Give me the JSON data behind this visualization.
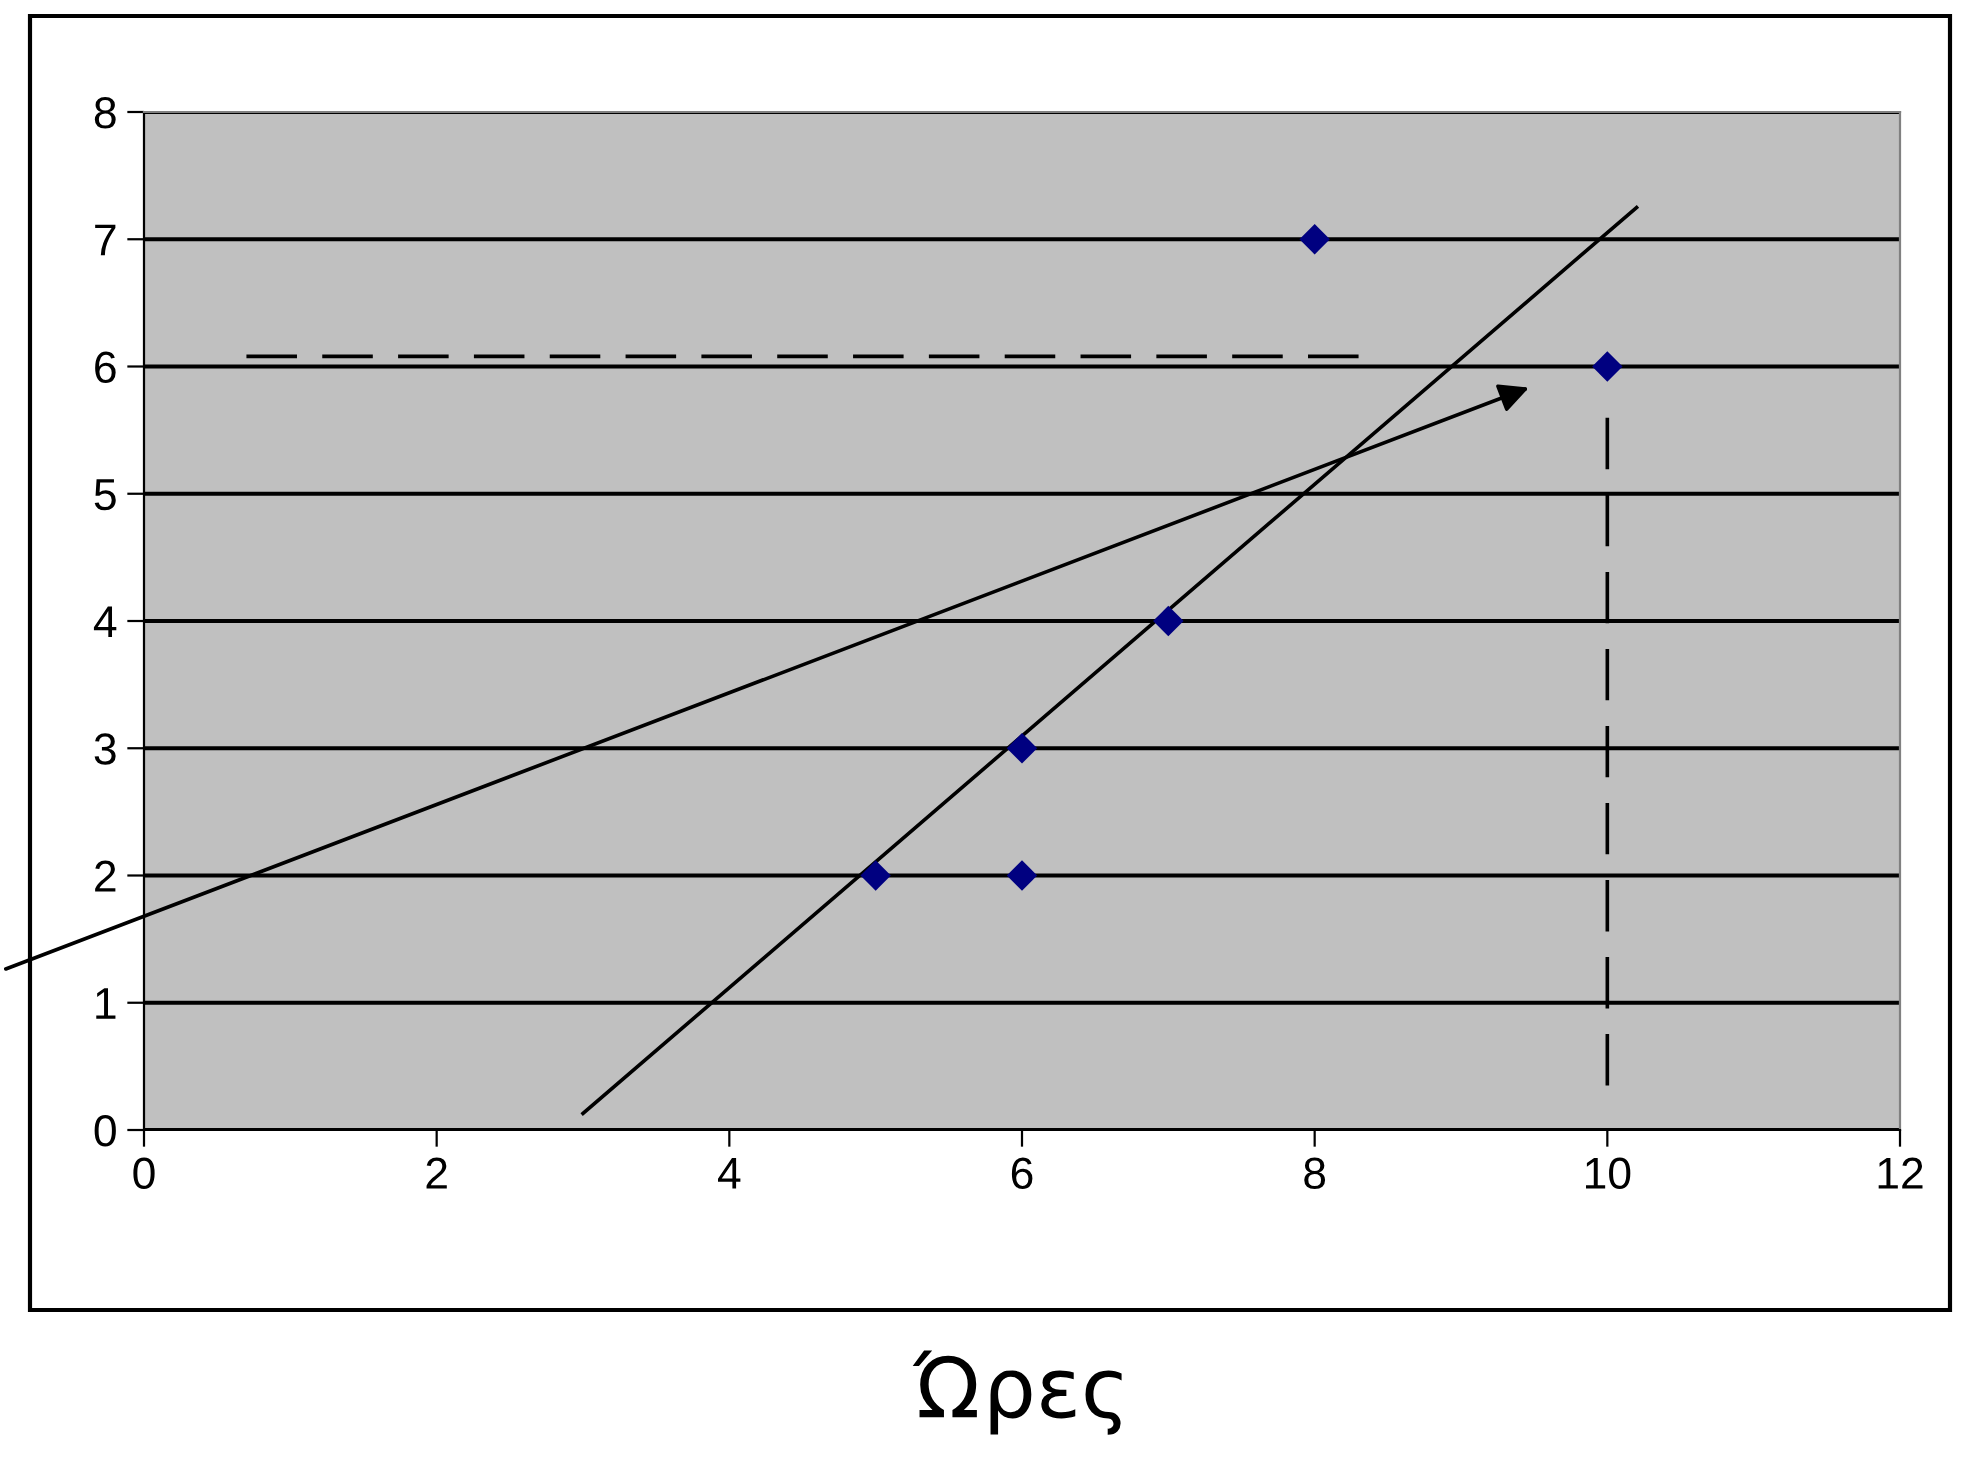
{
  "chart_data": {
    "type": "scatter",
    "xlabel": "Ώρες",
    "series": [
      {
        "color": "#000080",
        "marker": "diamond",
        "x": [
          5,
          6,
          6,
          7,
          8,
          10
        ],
        "values": [
          2,
          2,
          3,
          4,
          7,
          6
        ]
      },
      {
        "type": "line",
        "color": "#000000",
        "marker": "none",
        "line_style": "solid",
        "x": [
          3,
          10.2
        ],
        "values": [
          0.13,
          7.25
        ]
      },
      {
        "type": "line",
        "color": "#000000",
        "marker": "none",
        "line_style": "dashed",
        "x": [
          0.7,
          8.3
        ],
        "values": [
          6.08,
          6.08
        ]
      },
      {
        "type": "line",
        "color": "#000000",
        "marker": "none",
        "line_style": "dashed",
        "x": [
          10,
          10
        ],
        "values": [
          0.35,
          5.6
        ]
      }
    ],
    "xlim": [
      0,
      12
    ],
    "xticks": [
      0,
      2,
      4,
      6,
      8,
      10,
      12
    ],
    "ylim": [
      0,
      8
    ],
    "yticks": [
      0,
      1,
      2,
      3,
      4,
      5,
      6,
      7,
      8
    ],
    "grid": "y",
    "legend": false
  }
}
